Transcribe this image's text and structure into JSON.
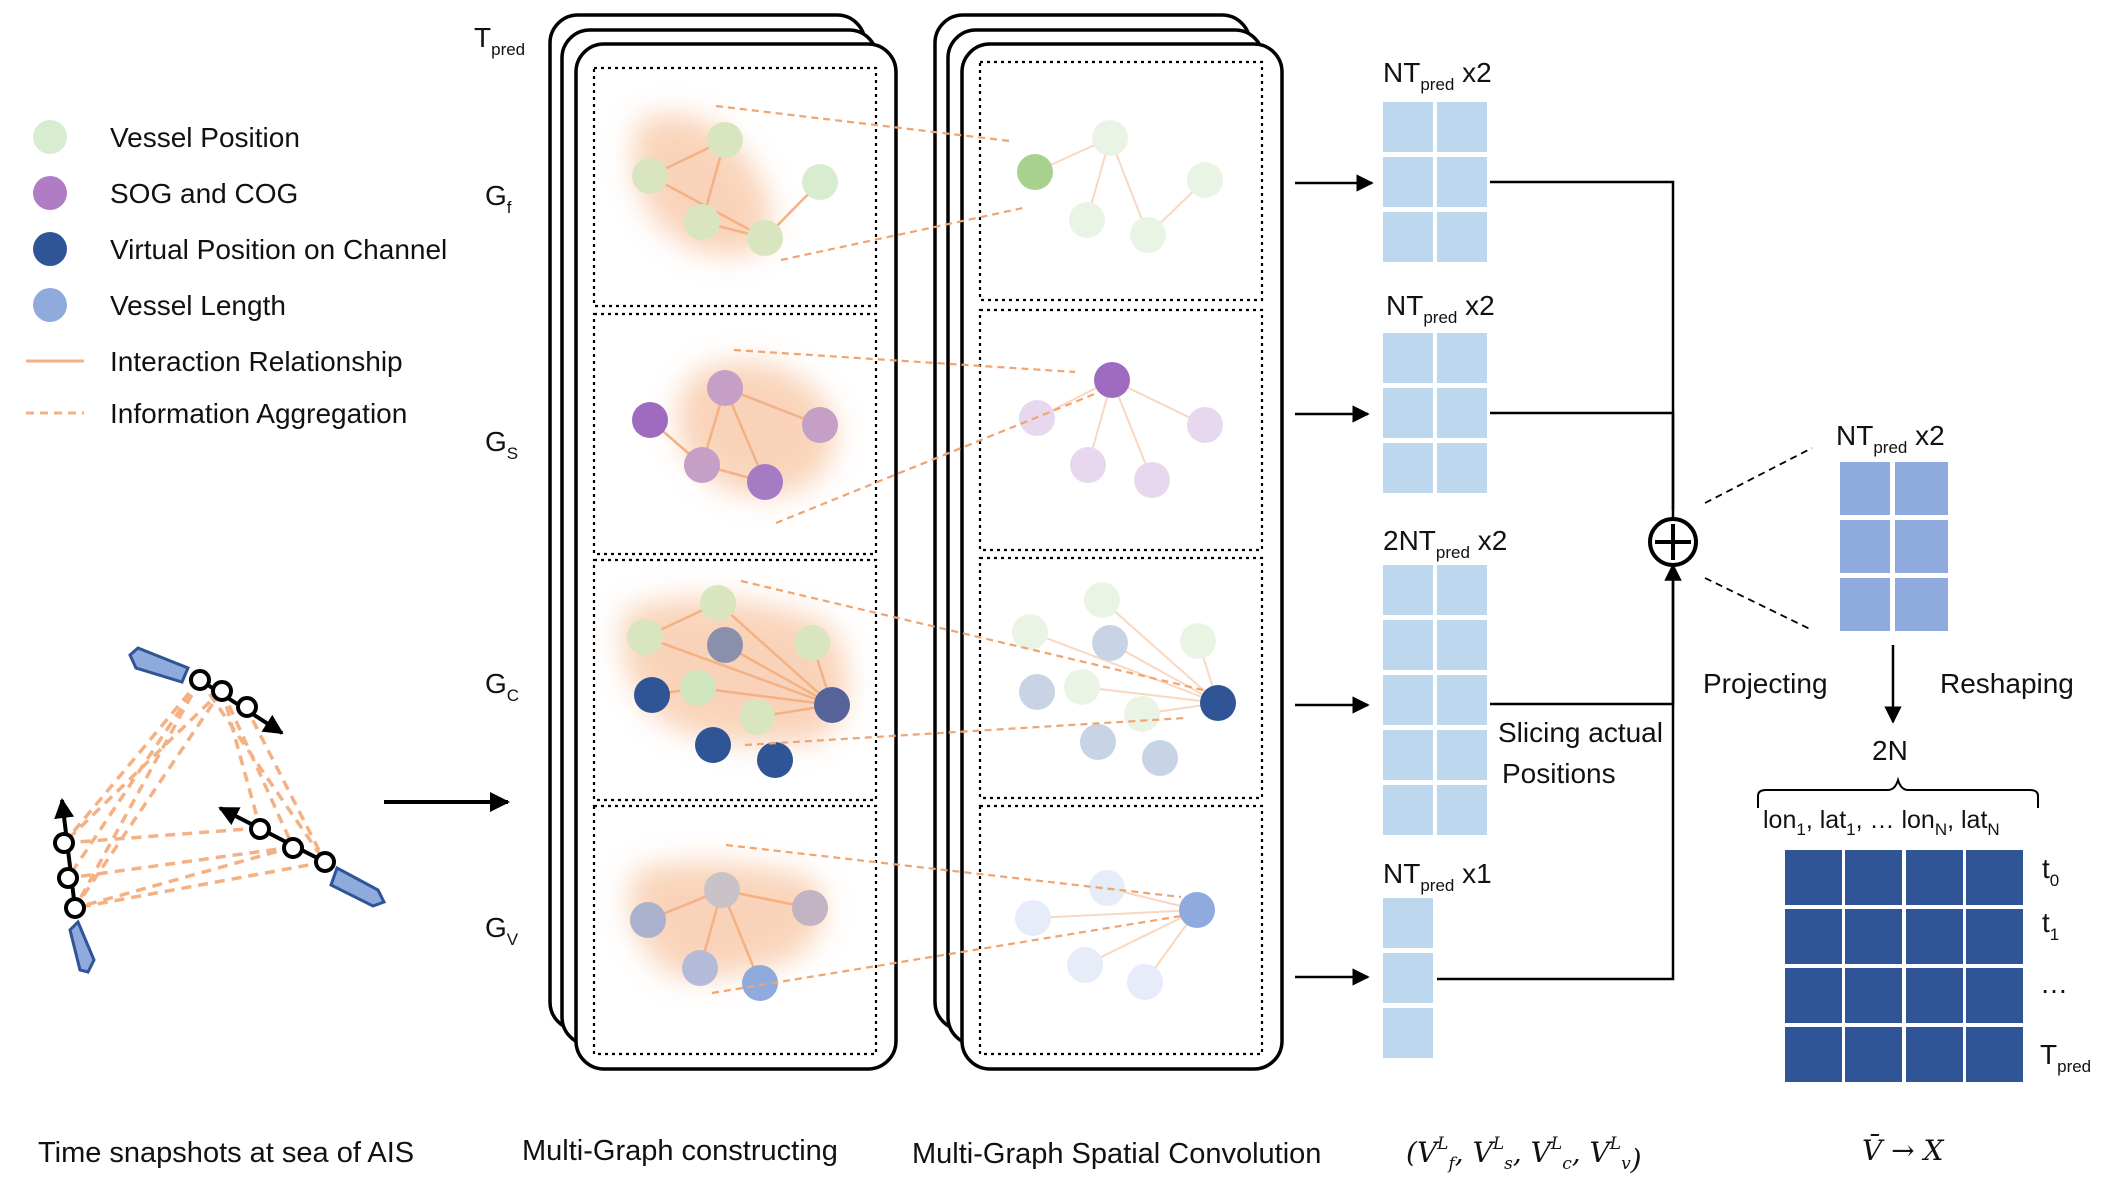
{
  "legend": {
    "items": [
      {
        "label": "Vessel Position",
        "kind": "dot",
        "color": "#d8ecd0"
      },
      {
        "label": "SOG and COG",
        "kind": "dot",
        "color": "#b07cc6"
      },
      {
        "label": "Virtual Position on Channel",
        "kind": "dot",
        "color": "#2f5597"
      },
      {
        "label": "Vessel Length",
        "kind": "dot",
        "color": "#8faadc"
      },
      {
        "label": "Interaction Relationship",
        "kind": "line",
        "color": "#f4b183"
      },
      {
        "label": "Information Aggregation",
        "kind": "dashed",
        "color": "#f4b183"
      }
    ]
  },
  "graphs": {
    "t_pred": "T",
    "t_pred_sub": "pred",
    "rows": [
      {
        "main": "G",
        "sub": "f"
      },
      {
        "main": "G",
        "sub": "S"
      },
      {
        "main": "G",
        "sub": "C"
      },
      {
        "main": "G",
        "sub": "V"
      }
    ]
  },
  "outputs": [
    {
      "pre": "NT",
      "sub": "pred",
      "post": " x2"
    },
    {
      "pre": "NT",
      "sub": "pred",
      "post": " x2"
    },
    {
      "pre": "2NT",
      "sub": "pred",
      "post": " x2"
    },
    {
      "pre": "NT",
      "sub": "pred",
      "post": " x1"
    }
  ],
  "slicing_label": [
    "Slicing actual",
    "Positions"
  ],
  "plus_symbol": "⊕",
  "final_block": {
    "pre": "NT",
    "sub": "pred",
    "post": " x2"
  },
  "projecting_label": "Projecting",
  "reshaping_label": "Reshaping",
  "two_n_label": "2N",
  "columns_label": [
    {
      "t": "lon"
    },
    {
      "t": "1",
      "s": true
    },
    {
      "t": ", lat"
    },
    {
      "t": "1",
      "s": true
    },
    {
      "t": ", … lon"
    },
    {
      "t": "N",
      "s": true
    },
    {
      "t": ", lat"
    },
    {
      "t": "N",
      "s": true
    }
  ],
  "row_labels": [
    {
      "main": "t",
      "sub": "0"
    },
    {
      "main": "t",
      "sub": "1"
    },
    {
      "main": "…",
      "sub": ""
    },
    {
      "main": "T",
      "sub": "pred"
    }
  ],
  "captions": {
    "ais": "Time snapshots at sea of AIS",
    "construct": "Multi-Graph constructing",
    "convolution": "Multi-Graph Spatial Convolution",
    "features": "(V_f^L, V_s^L, V_c^L, V_v^L)",
    "mapping": "V̄ → X"
  },
  "colors": {
    "light_block": "#bdd7ee",
    "mid_block": "#8faadc",
    "dark_block": "#2f5597",
    "edge": "#f4b183",
    "green": "#d8ecd0",
    "purple": "#b07cc6",
    "navy": "#2f5597",
    "blue": "#8faadc"
  }
}
